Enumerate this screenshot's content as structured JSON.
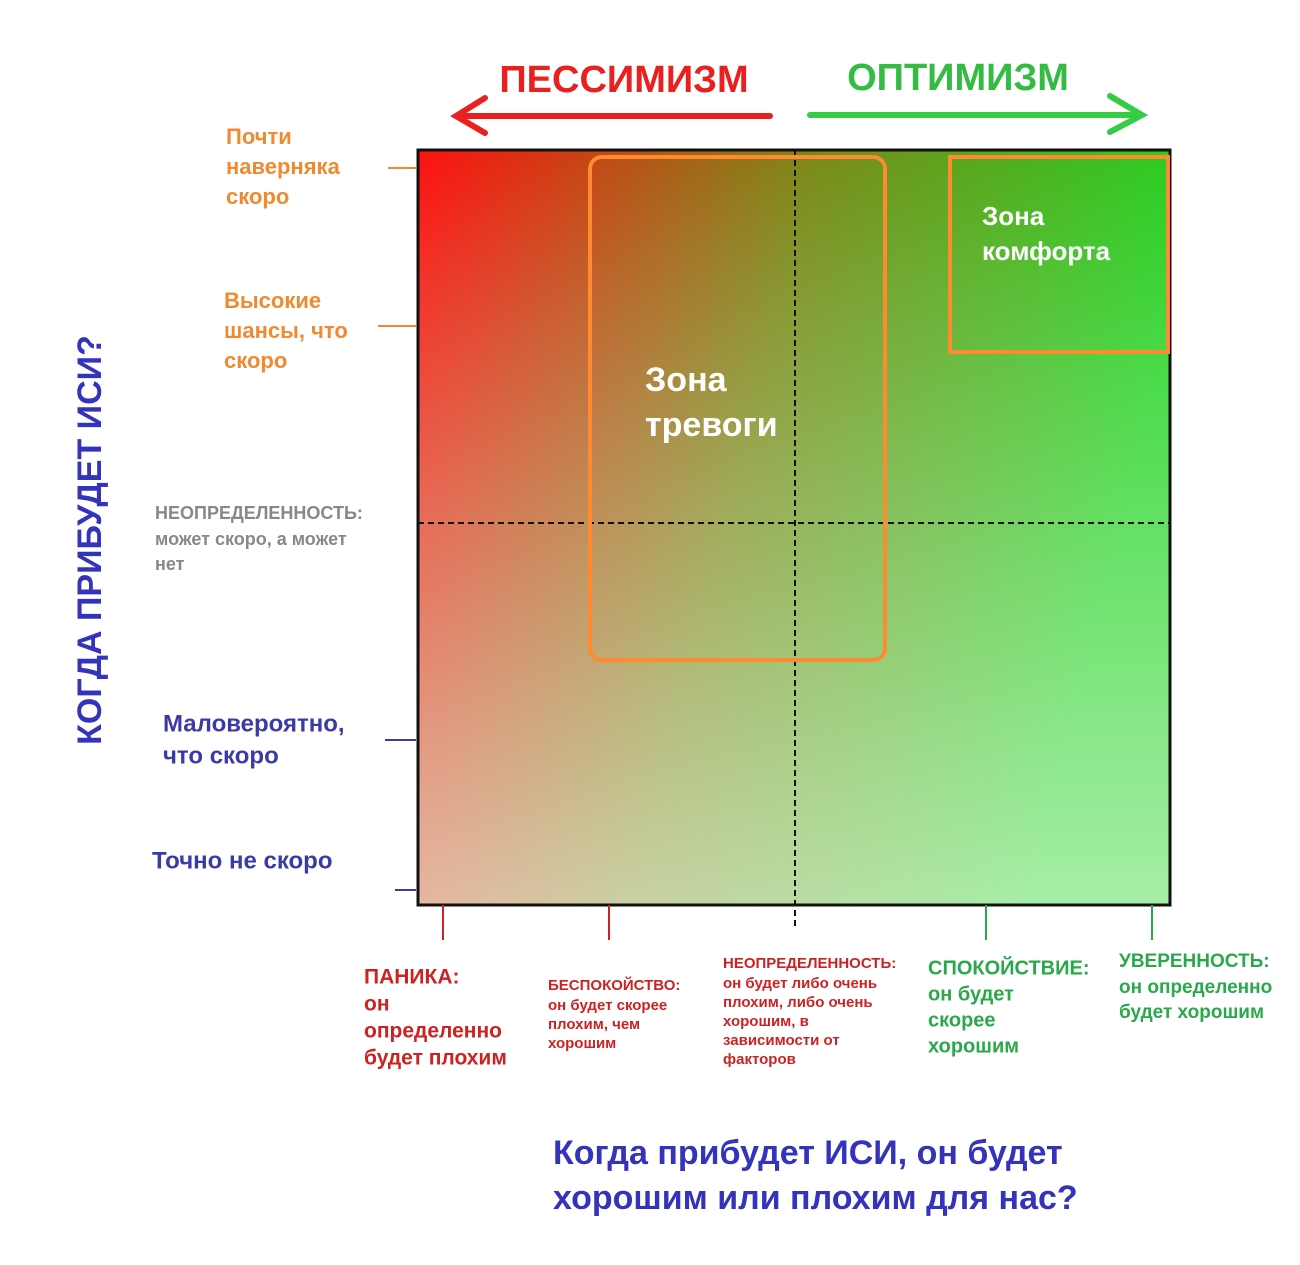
{
  "header": {
    "left": "ПЕССИМИЗМ",
    "right": "ОПТИМИЗМ"
  },
  "y_axis": {
    "title": "КОГДА ПРИБУДЕТ ИСИ?",
    "levels": [
      {
        "lines": [
          "Почти",
          "наверняка",
          "скоро"
        ]
      },
      {
        "lines": [
          "Высокие",
          "шансы, что",
          "скоро"
        ]
      },
      {
        "lines": [
          "НЕОПРЕДЕЛЕННОСТЬ:",
          "может скоро, а может",
          "нет"
        ]
      },
      {
        "lines": [
          "Маловероятно,",
          "что скоро"
        ]
      },
      {
        "lines": [
          "Точно не скоро"
        ]
      }
    ]
  },
  "x_axis": {
    "title": [
      "Когда прибудет ИСИ, он будет",
      "хорошим или плохим для нас?"
    ],
    "levels": [
      {
        "lines": [
          "ПАНИКА:",
          "он",
          "определенно",
          "будет плохим"
        ]
      },
      {
        "lines": [
          "БЕСПОКОЙСТВО:",
          "он будет скорее",
          "плохим, чем",
          "хорошим"
        ]
      },
      {
        "lines": [
          "НЕОПРЕДЕЛЕННОСТЬ:",
          "он будет либо очень",
          "плохим, либо очень",
          "хорошим, в",
          "зависимости от",
          "факторов"
        ]
      },
      {
        "lines": [
          "СПОКОЙСТВИЕ:",
          "он будет",
          "скорее",
          "хорошим"
        ]
      },
      {
        "lines": [
          "УВЕРЕННОСТЬ:",
          "он определенно",
          "будет хорошим"
        ]
      }
    ]
  },
  "zones": [
    {
      "lines": [
        "Зона",
        "тревоги"
      ]
    },
    {
      "lines": [
        "Зона",
        "комфорта"
      ]
    }
  ]
}
